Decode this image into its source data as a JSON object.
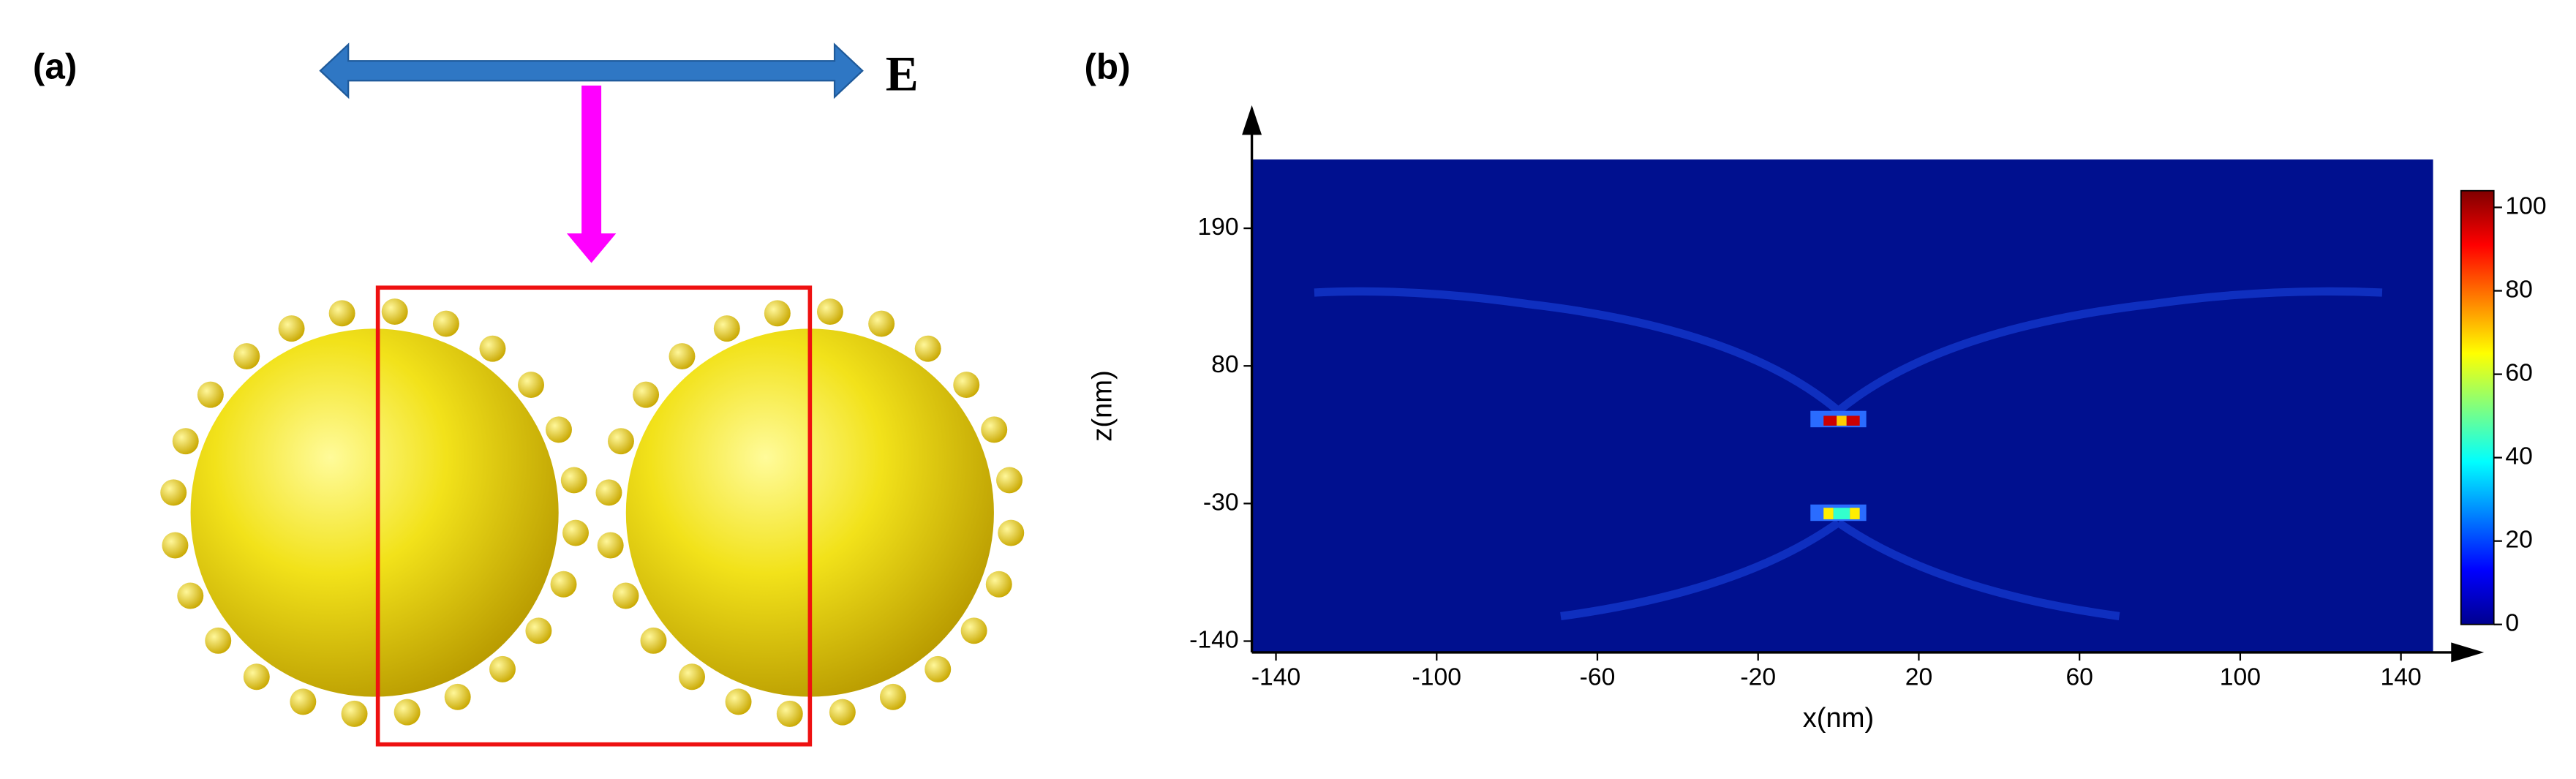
{
  "panel_labels": [
    "(a)",
    "(b)"
  ],
  "field_label": "E",
  "chart_data": {
    "type": "heatmap",
    "xlabel": "x(nm)",
    "ylabel": "z(nm)",
    "xlim": [
      -146,
      148
    ],
    "xticks": [
      -140,
      -100,
      -60,
      -20,
      20,
      60,
      100,
      140
    ],
    "ylim": [
      -149,
      245
    ],
    "yticks": [
      190,
      80,
      -30,
      -140
    ],
    "colorbar": {
      "lim": [
        0,
        104
      ],
      "ticks": [
        0,
        20,
        40,
        60,
        80,
        100
      ]
    }
  }
}
